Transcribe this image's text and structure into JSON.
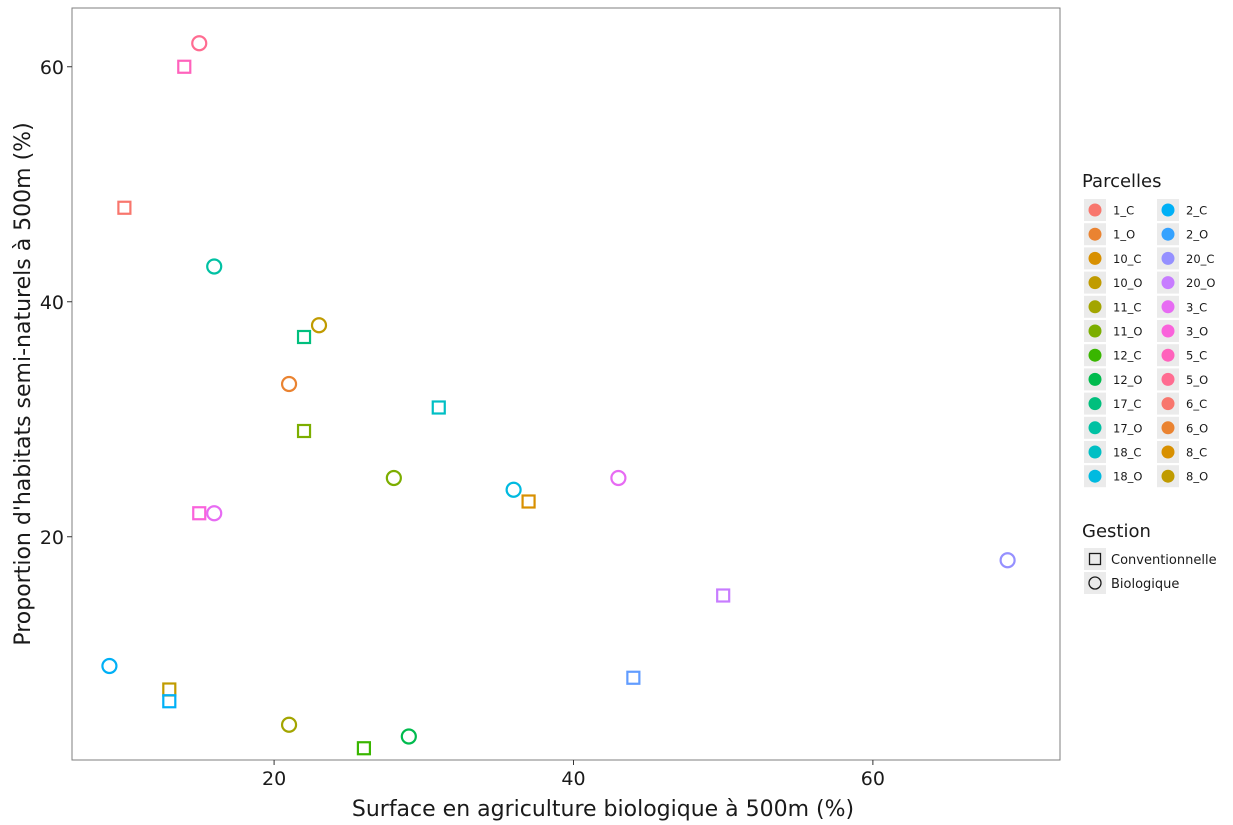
{
  "chart_data": {
    "type": "scatter",
    "xlabel": "Surface en agriculture biologique à 500m (%)",
    "ylabel": "Proportion d'habitats semi-naturels à 500m (%)",
    "xlim": [
      6.5,
      72.5
    ],
    "ylim": [
      1.0,
      65.0
    ],
    "xticks": [
      20,
      40,
      60
    ],
    "yticks": [
      20,
      40,
      60
    ],
    "grid": false,
    "legend_position": "right",
    "legend_color_title": "Parcelles",
    "legend_shape_title": "Gestion",
    "shapes": [
      {
        "key": "C",
        "label": "Conventionnelle",
        "symbol": "square"
      },
      {
        "key": "O",
        "label": "Biologique",
        "symbol": "circle"
      }
    ],
    "parcelles": [
      {
        "name": "1_C",
        "color": "#F8766D"
      },
      {
        "name": "1_O",
        "color": "#EA8331"
      },
      {
        "name": "10_C",
        "color": "#D89000"
      },
      {
        "name": "10_O",
        "color": "#C09B00"
      },
      {
        "name": "11_C",
        "color": "#A3A500"
      },
      {
        "name": "11_O",
        "color": "#7CAE00"
      },
      {
        "name": "12_C",
        "color": "#39B600"
      },
      {
        "name": "12_O",
        "color": "#00BB4E"
      },
      {
        "name": "17_C",
        "color": "#00BF7D"
      },
      {
        "name": "17_O",
        "color": "#00C1A3"
      },
      {
        "name": "18_C",
        "color": "#00BFC4"
      },
      {
        "name": "18_O",
        "color": "#00BAE0"
      },
      {
        "name": "2_C",
        "color": "#00B0F6"
      },
      {
        "name": "2_O",
        "color": "#35A2FF"
      },
      {
        "name": "20_C",
        "color": "#9590FF"
      },
      {
        "name": "20_O",
        "color": "#C77CFF"
      },
      {
        "name": "3_C",
        "color": "#E76BF3"
      },
      {
        "name": "3_O",
        "color": "#FA62DB"
      },
      {
        "name": "5_C",
        "color": "#FF62BC"
      },
      {
        "name": "5_O",
        "color": "#FF6C91"
      },
      {
        "name": "6_C",
        "color": "#F8766D"
      },
      {
        "name": "6_O",
        "color": "#EA8331"
      },
      {
        "name": "8_C",
        "color": "#D89000"
      },
      {
        "name": "8_O",
        "color": "#C09B00"
      }
    ],
    "points": [
      {
        "x": 15,
        "y": 62,
        "shape": "circle",
        "color": "#FF6C91"
      },
      {
        "x": 14,
        "y": 60,
        "shape": "square",
        "color": "#FF62BC"
      },
      {
        "x": 10,
        "y": 48,
        "shape": "square",
        "color": "#F8766D"
      },
      {
        "x": 16,
        "y": 43,
        "shape": "circle",
        "color": "#00C1A3"
      },
      {
        "x": 23,
        "y": 38,
        "shape": "circle",
        "color": "#C09B00"
      },
      {
        "x": 22,
        "y": 37,
        "shape": "square",
        "color": "#00BF7D"
      },
      {
        "x": 21,
        "y": 33,
        "shape": "circle",
        "color": "#EA8331"
      },
      {
        "x": 31,
        "y": 31,
        "shape": "square",
        "color": "#00BFC4"
      },
      {
        "x": 22,
        "y": 29,
        "shape": "square",
        "color": "#7CAE00"
      },
      {
        "x": 28,
        "y": 25,
        "shape": "circle",
        "color": "#7CAE00"
      },
      {
        "x": 43,
        "y": 25,
        "shape": "circle",
        "color": "#E76BF3"
      },
      {
        "x": 36,
        "y": 24,
        "shape": "circle",
        "color": "#00BAE0"
      },
      {
        "x": 37,
        "y": 23,
        "shape": "square",
        "color": "#D89000"
      },
      {
        "x": 15,
        "y": 22,
        "shape": "square",
        "color": "#FA62DB"
      },
      {
        "x": 16,
        "y": 22,
        "shape": "circle",
        "color": "#E76BF3"
      },
      {
        "x": 69,
        "y": 18,
        "shape": "circle",
        "color": "#9590FF"
      },
      {
        "x": 50,
        "y": 15,
        "shape": "square",
        "color": "#C77CFF"
      },
      {
        "x": 9,
        "y": 9,
        "shape": "circle",
        "color": "#00B0F6"
      },
      {
        "x": 44,
        "y": 8,
        "shape": "square",
        "color": "#619CFF"
      },
      {
        "x": 13,
        "y": 7,
        "shape": "square",
        "color": "#C09B00"
      },
      {
        "x": 13,
        "y": 6,
        "shape": "square",
        "color": "#00B0F6"
      },
      {
        "x": 21,
        "y": 4,
        "shape": "circle",
        "color": "#A3A500"
      },
      {
        "x": 29,
        "y": 3,
        "shape": "circle",
        "color": "#00BB4E"
      },
      {
        "x": 26,
        "y": 2,
        "shape": "square",
        "color": "#39B600"
      }
    ]
  }
}
